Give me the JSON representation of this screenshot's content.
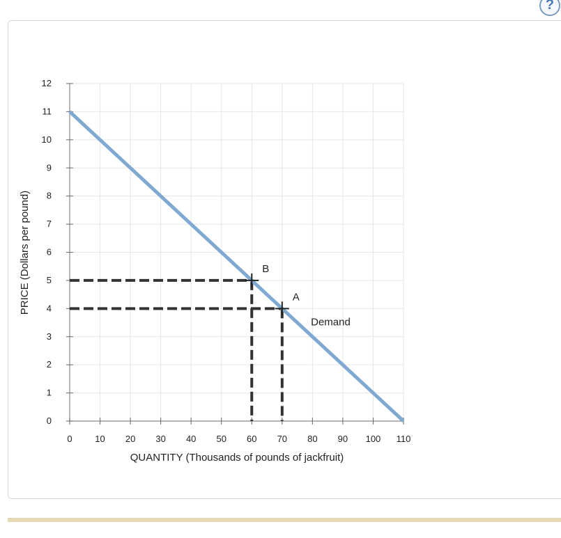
{
  "help_button": {
    "label": "?"
  },
  "chart_data": {
    "type": "line",
    "xlabel": "QUANTITY (Thousands of pounds of jackfruit)",
    "ylabel": "PRICE (Dollars per pound)",
    "xlim": [
      0,
      110
    ],
    "ylim": [
      0,
      12
    ],
    "x_ticks": [
      0,
      10,
      20,
      30,
      40,
      50,
      60,
      70,
      80,
      90,
      100,
      110
    ],
    "y_ticks": [
      0,
      1,
      2,
      3,
      4,
      5,
      6,
      7,
      8,
      9,
      10,
      11,
      12
    ],
    "grid": true,
    "series": [
      {
        "name": "Demand",
        "color": "#7fa9d1",
        "x": [
          0,
          110
        ],
        "y": [
          11,
          0
        ]
      }
    ],
    "points": [
      {
        "label": "B",
        "x": 60,
        "y": 5
      },
      {
        "label": "A",
        "x": 70,
        "y": 4
      }
    ]
  }
}
